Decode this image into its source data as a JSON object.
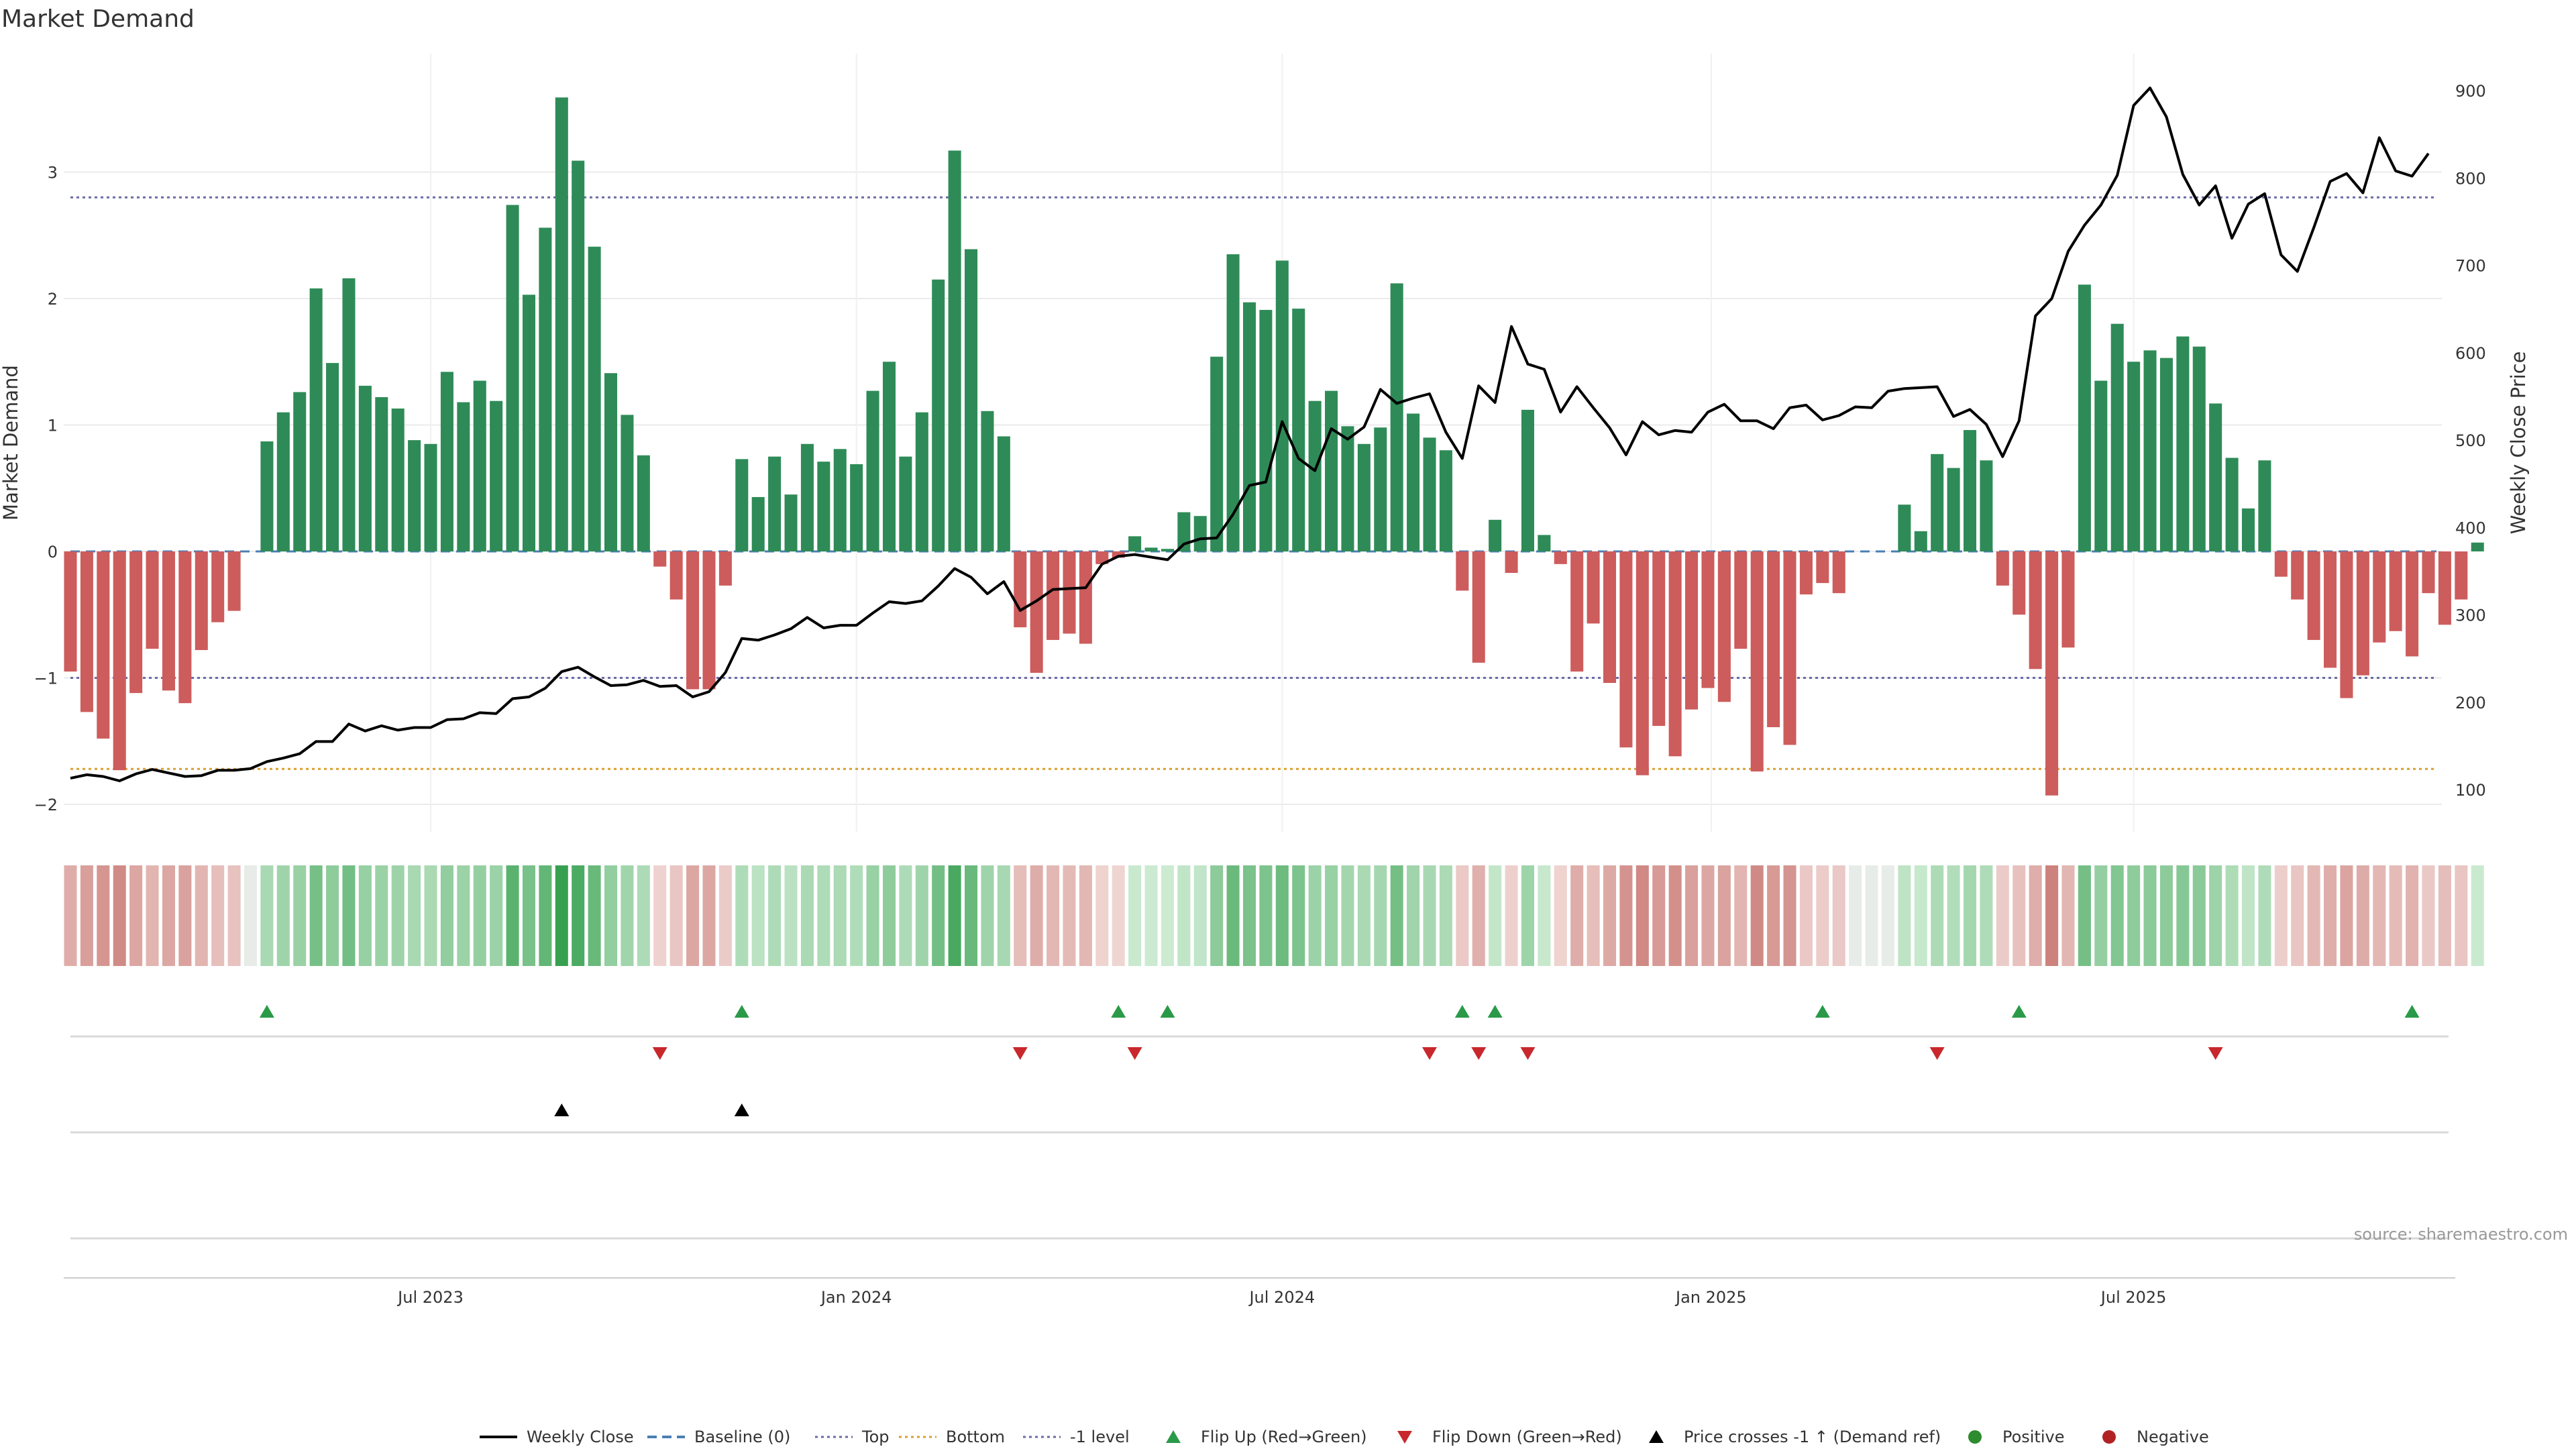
{
  "chart_data": {
    "type": "bar",
    "title": "Market Demand",
    "ylabel": "Market Demand",
    "y2label": "Weekly Close Price",
    "ylim": [
      -2.2,
      3.9
    ],
    "y2lim": [
      80,
      940
    ],
    "yticks": [
      -2,
      -1,
      0,
      1,
      2,
      3
    ],
    "y2ticks": [
      100,
      200,
      300,
      400,
      500,
      600,
      700,
      800,
      900
    ],
    "xlim": [
      0,
      144
    ],
    "xticks": [
      {
        "label": "Jul 2023",
        "x": 22
      },
      {
        "label": "Jan 2024",
        "x": 48
      },
      {
        "label": "Jul 2024",
        "x": 74
      },
      {
        "label": "Jan 2025",
        "x": 100.2
      },
      {
        "label": "Jul 2025",
        "x": 126
      }
    ],
    "levels": {
      "top": 2.8,
      "bottom": -1.72,
      "minus_one": -1.0,
      "baseline": 0
    },
    "demand": [
      -0.95,
      -1.27,
      -1.48,
      -1.73,
      -1.12,
      -0.77,
      -1.1,
      -1.2,
      -0.78,
      -0.56,
      -0.47,
      0,
      0.87,
      1.1,
      1.26,
      2.08,
      1.49,
      2.16,
      1.31,
      1.22,
      1.13,
      0.88,
      0.85,
      1.42,
      1.18,
      1.35,
      1.19,
      2.74,
      2.03,
      2.56,
      3.59,
      3.09,
      2.41,
      1.41,
      1.08,
      0.76,
      -0.12,
      -0.38,
      -1.09,
      -1.09,
      -0.27,
      0.73,
      0.43,
      0.75,
      0.45,
      0.85,
      0.71,
      0.81,
      0.69,
      1.27,
      1.5,
      0.75,
      1.1,
      2.15,
      3.17,
      2.39,
      1.11,
      0.91,
      -0.6,
      -0.96,
      -0.7,
      -0.65,
      -0.73,
      -0.1,
      -0.05,
      0.12,
      0.03,
      0.02,
      0.31,
      0.28,
      1.54,
      2.35,
      1.97,
      1.91,
      2.3,
      1.92,
      1.19,
      1.27,
      0.99,
      0.85,
      0.98,
      2.12,
      1.09,
      0.9,
      0.8,
      -0.31,
      -0.88,
      0.25,
      -0.17,
      1.12,
      0.13,
      -0.1,
      -0.95,
      -0.57,
      -1.04,
      -1.55,
      -1.77,
      -1.38,
      -1.62,
      -1.25,
      -1.08,
      -1.19,
      -0.77,
      -1.74,
      -1.39,
      -1.53,
      -0.34,
      -0.25,
      -0.33,
      0,
      0,
      0,
      0.37,
      0.16,
      0.77,
      0.66,
      0.96,
      0.72,
      -0.27,
      -0.5,
      -0.93,
      -1.93,
      -0.76,
      2.11,
      1.35,
      1.8,
      1.5,
      1.59,
      1.53,
      1.7,
      1.62,
      1.17,
      0.74,
      0.34,
      0.72,
      -0.2,
      -0.38,
      -0.7,
      -0.92,
      -1.16,
      -0.98,
      -0.72,
      -0.63,
      -0.83,
      -0.33,
      -0.58,
      -0.38,
      0.07
    ],
    "weekly_close": [
      {
        "x": 0,
        "y": 113
      },
      {
        "x": 1,
        "y": 117
      },
      {
        "x": 2,
        "y": 115
      },
      {
        "x": 3,
        "y": 110
      },
      {
        "x": 4,
        "y": 118
      },
      {
        "x": 5,
        "y": 123
      },
      {
        "x": 6,
        "y": 119
      },
      {
        "x": 7,
        "y": 115
      },
      {
        "x": 8,
        "y": 116
      },
      {
        "x": 9,
        "y": 122
      },
      {
        "x": 10,
        "y": 122
      },
      {
        "x": 11,
        "y": 124
      },
      {
        "x": 12,
        "y": 132
      },
      {
        "x": 13,
        "y": 136
      },
      {
        "x": 14,
        "y": 141
      },
      {
        "x": 15,
        "y": 155
      },
      {
        "x": 16,
        "y": 155
      },
      {
        "x": 17,
        "y": 175
      },
      {
        "x": 18,
        "y": 167
      },
      {
        "x": 19,
        "y": 173
      },
      {
        "x": 20,
        "y": 168
      },
      {
        "x": 21,
        "y": 171
      },
      {
        "x": 22,
        "y": 171
      },
      {
        "x": 23,
        "y": 180
      },
      {
        "x": 24,
        "y": 181
      },
      {
        "x": 25,
        "y": 188
      },
      {
        "x": 26,
        "y": 187
      },
      {
        "x": 27,
        "y": 204
      },
      {
        "x": 28,
        "y": 206
      },
      {
        "x": 29,
        "y": 216
      },
      {
        "x": 30,
        "y": 235
      },
      {
        "x": 31,
        "y": 240
      },
      {
        "x": 32,
        "y": 229
      },
      {
        "x": 33,
        "y": 219
      },
      {
        "x": 34,
        "y": 220
      },
      {
        "x": 35,
        "y": 225
      },
      {
        "x": 36,
        "y": 218
      },
      {
        "x": 37,
        "y": 219
      },
      {
        "x": 38,
        "y": 206
      },
      {
        "x": 39,
        "y": 212
      },
      {
        "x": 40,
        "y": 234
      },
      {
        "x": 41,
        "y": 273
      },
      {
        "x": 42,
        "y": 271
      },
      {
        "x": 43,
        "y": 277
      },
      {
        "x": 44,
        "y": 284
      },
      {
        "x": 45,
        "y": 297
      },
      {
        "x": 46,
        "y": 285
      },
      {
        "x": 47,
        "y": 288
      },
      {
        "x": 48,
        "y": 288
      },
      {
        "x": 49,
        "y": 302
      },
      {
        "x": 50,
        "y": 315
      },
      {
        "x": 51,
        "y": 313
      },
      {
        "x": 52,
        "y": 316
      },
      {
        "x": 53,
        "y": 333
      },
      {
        "x": 54,
        "y": 353
      },
      {
        "x": 55,
        "y": 343
      },
      {
        "x": 56,
        "y": 324
      },
      {
        "x": 57,
        "y": 338
      },
      {
        "x": 58,
        "y": 305
      },
      {
        "x": 59,
        "y": 316
      },
      {
        "x": 60,
        "y": 329
      },
      {
        "x": 61,
        "y": 330
      },
      {
        "x": 62,
        "y": 331
      },
      {
        "x": 63,
        "y": 358
      },
      {
        "x": 64,
        "y": 367
      },
      {
        "x": 65,
        "y": 369
      },
      {
        "x": 66,
        "y": 366
      },
      {
        "x": 67,
        "y": 363
      },
      {
        "x": 68,
        "y": 381
      },
      {
        "x": 69,
        "y": 387
      },
      {
        "x": 70,
        "y": 388
      },
      {
        "x": 71,
        "y": 415
      },
      {
        "x": 72,
        "y": 448
      },
      {
        "x": 73,
        "y": 452
      },
      {
        "x": 74,
        "y": 521
      },
      {
        "x": 75,
        "y": 479
      },
      {
        "x": 76,
        "y": 465
      },
      {
        "x": 77,
        "y": 513
      },
      {
        "x": 78,
        "y": 501
      },
      {
        "x": 79,
        "y": 515
      },
      {
        "x": 80,
        "y": 558
      },
      {
        "x": 81,
        "y": 542
      },
      {
        "x": 82,
        "y": 548
      },
      {
        "x": 83,
        "y": 553
      },
      {
        "x": 84,
        "y": 509
      },
      {
        "x": 85,
        "y": 479
      },
      {
        "x": 86,
        "y": 562
      },
      {
        "x": 87,
        "y": 543
      },
      {
        "x": 88,
        "y": 630
      },
      {
        "x": 89,
        "y": 587
      },
      {
        "x": 90,
        "y": 581
      },
      {
        "x": 91,
        "y": 532
      },
      {
        "x": 92,
        "y": 561
      },
      {
        "x": 93,
        "y": 537
      },
      {
        "x": 94,
        "y": 514
      },
      {
        "x": 95,
        "y": 483
      },
      {
        "x": 96,
        "y": 521
      },
      {
        "x": 97,
        "y": 506
      },
      {
        "x": 98,
        "y": 511
      },
      {
        "x": 99,
        "y": 509
      },
      {
        "x": 100,
        "y": 532
      },
      {
        "x": 101,
        "y": 541
      },
      {
        "x": 102,
        "y": 522
      },
      {
        "x": 103,
        "y": 522
      },
      {
        "x": 104,
        "y": 513
      },
      {
        "x": 105,
        "y": 537
      },
      {
        "x": 106,
        "y": 540
      },
      {
        "x": 107,
        "y": 523
      },
      {
        "x": 108,
        "y": 528
      },
      {
        "x": 109,
        "y": 538
      },
      {
        "x": 110,
        "y": 537
      },
      {
        "x": 111,
        "y": 556
      },
      {
        "x": 112,
        "y": 559
      },
      {
        "x": 113,
        "y": 560
      },
      {
        "x": 114,
        "y": 561
      },
      {
        "x": 115,
        "y": 527
      },
      {
        "x": 116,
        "y": 535
      },
      {
        "x": 117,
        "y": 518
      },
      {
        "x": 118,
        "y": 481
      },
      {
        "x": 119,
        "y": 522
      },
      {
        "x": 120,
        "y": 642
      },
      {
        "x": 121,
        "y": 662
      },
      {
        "x": 122,
        "y": 716
      },
      {
        "x": 123,
        "y": 746
      },
      {
        "x": 124,
        "y": 769
      },
      {
        "x": 125,
        "y": 803
      },
      {
        "x": 126,
        "y": 883
      },
      {
        "x": 127,
        "y": 903
      },
      {
        "x": 128,
        "y": 870
      },
      {
        "x": 129,
        "y": 804
      },
      {
        "x": 130,
        "y": 769
      },
      {
        "x": 131,
        "y": 791
      },
      {
        "x": 132,
        "y": 731
      },
      {
        "x": 133,
        "y": 770
      },
      {
        "x": 134,
        "y": 782
      },
      {
        "x": 135,
        "y": 712
      },
      {
        "x": 136,
        "y": 693
      },
      {
        "x": 137,
        "y": 743
      },
      {
        "x": 138,
        "y": 796
      },
      {
        "x": 139,
        "y": 805
      },
      {
        "x": 140,
        "y": 783
      },
      {
        "x": 141,
        "y": 846
      },
      {
        "x": 142,
        "y": 808
      },
      {
        "x": 143,
        "y": 802
      },
      {
        "x": 144,
        "y": 828
      }
    ],
    "flip_up_x": [
      12,
      41,
      64,
      67,
      85,
      87,
      107,
      119,
      143
    ],
    "flip_down_x": [
      36,
      58,
      65,
      83,
      86,
      89,
      114,
      131
    ],
    "price_cross_x": [
      30,
      41
    ],
    "legend": [
      {
        "label": "Weekly Close",
        "kind": "line"
      },
      {
        "label": "Baseline (0)",
        "kind": "dashed"
      },
      {
        "label": "Top",
        "kind": "dotted"
      },
      {
        "label": "Bottom",
        "kind": "dotted-orange"
      },
      {
        "label": "-1 level",
        "kind": "dotted"
      },
      {
        "label": "Flip Up (Red→Green)",
        "kind": "triangle-up-green"
      },
      {
        "label": "Flip Down (Green→Red)",
        "kind": "triangle-down-red"
      },
      {
        "label": "Price crosses -1 ↑ (Demand ref)",
        "kind": "triangle-up-black"
      },
      {
        "label": "Positive",
        "kind": "dot-green"
      },
      {
        "label": "Negative",
        "kind": "dot-red"
      }
    ],
    "legend_placement": "bottom",
    "source": "source: sharemaestro.com"
  },
  "colors": {
    "positive": "#2e8b57",
    "negative": "#cd5c5c",
    "price": "#000000",
    "top_line": "#6a6aa8",
    "bottom_line": "#d9a030",
    "flip_up": "#2a9a48",
    "flip_down": "#c8282c",
    "legend_positive": "#2e8b2e",
    "legend_negative": "#b22222"
  }
}
